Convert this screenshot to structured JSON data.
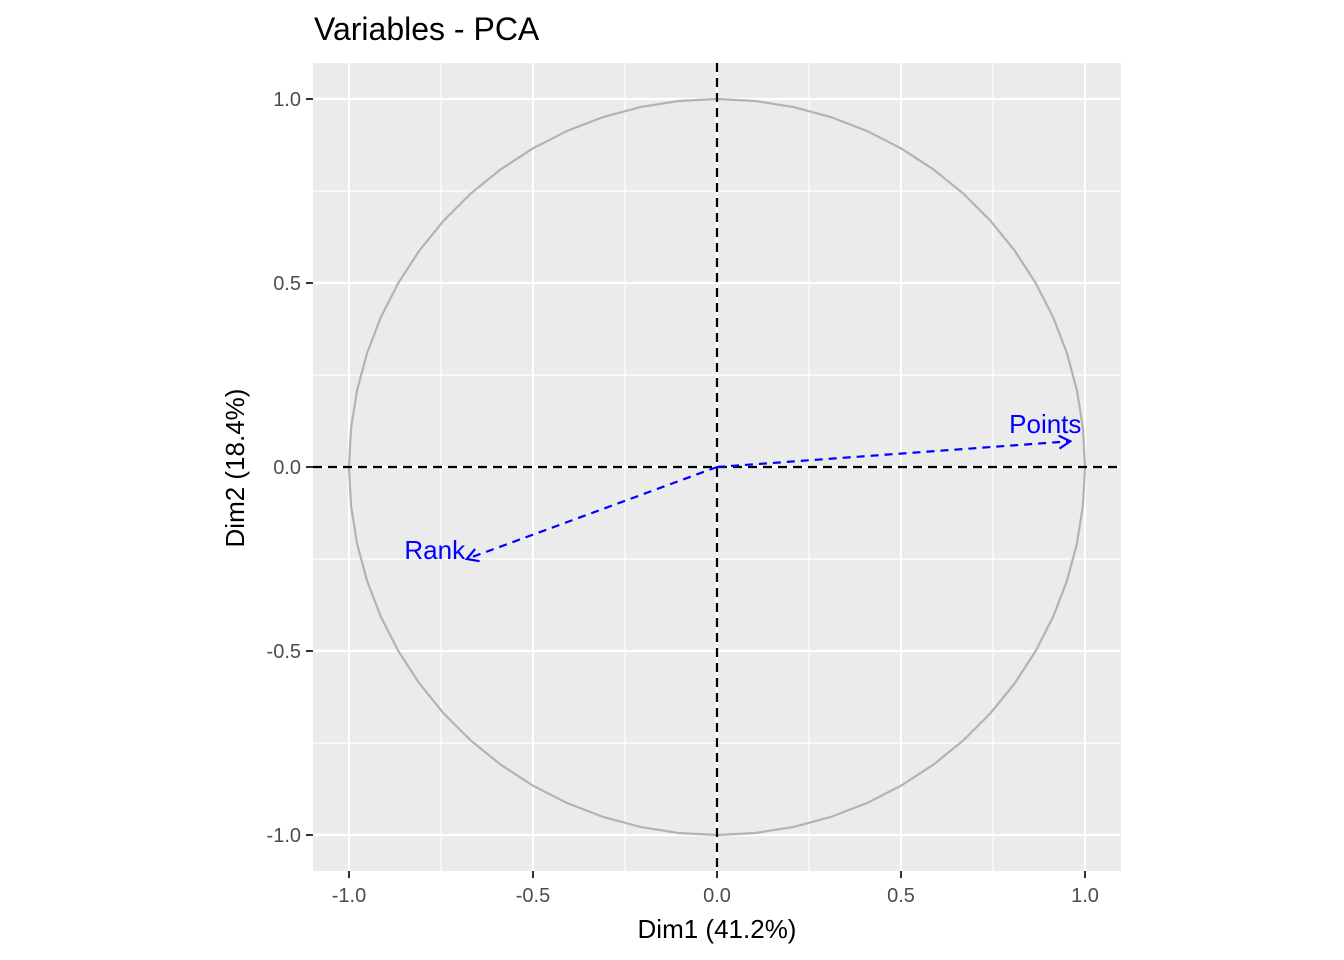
{
  "chart_data": {
    "type": "scatter",
    "subtype": "pca-variable-correlation-circle",
    "title": "Variables - PCA",
    "xlabel": "Dim1 (41.2%)",
    "ylabel": "Dim2 (18.4%)",
    "xlim": [
      -1.1,
      1.1
    ],
    "ylim": [
      -1.1,
      1.1
    ],
    "x_ticks": [
      -1.0,
      -0.5,
      0.0,
      0.5,
      1.0
    ],
    "x_tick_labels": [
      "-1.0",
      "-0.5",
      "0.0",
      "0.5",
      "1.0"
    ],
    "y_ticks": [
      -1.0,
      -0.5,
      0.0,
      0.5,
      1.0
    ],
    "y_tick_labels": [
      "-1.0",
      "-0.5",
      "0.0",
      "0.5",
      "1.0"
    ],
    "grid": true,
    "unit_circle": true,
    "reference_lines": {
      "x": 0,
      "y": 0,
      "style": "dashed"
    },
    "variables": [
      {
        "name": "Points",
        "x": 0.96,
        "y": 0.07
      },
      {
        "name": "Rank",
        "x": -0.68,
        "y": -0.25
      }
    ],
    "colors": {
      "panel": "#ebebeb",
      "grid": "#ffffff",
      "circle": "#b3b3b3",
      "arrow": "#0000ff",
      "reference": "#000000",
      "tick_label": "#4d4d4d"
    }
  }
}
